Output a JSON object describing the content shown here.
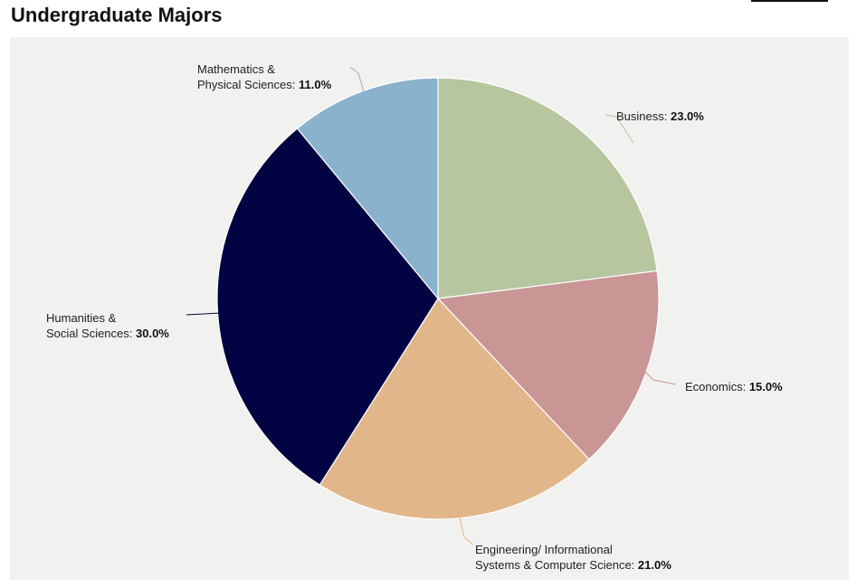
{
  "page": {
    "title": "Undergraduate Majors"
  },
  "chart_data": {
    "type": "pie",
    "start_angle_deg": 0,
    "direction": "clockwise",
    "slices": [
      {
        "label_lines": [
          "Business:"
        ],
        "value": 23.0,
        "value_text": "23.0%",
        "color": "#b8c6a0"
      },
      {
        "label_lines": [
          "Economics:"
        ],
        "value": 15.0,
        "value_text": "15.0%",
        "color": "#c99595"
      },
      {
        "label_lines": [
          "Engineering/ Informational",
          "Systems & Computer Science:"
        ],
        "value": 21.0,
        "value_text": "21.0%",
        "color": "#e2b68b"
      },
      {
        "label_lines": [
          "Humanities &",
          "Social Sciences:"
        ],
        "value": 30.0,
        "value_text": "30.0%",
        "color": "#020342"
      },
      {
        "label_lines": [
          "Mathematics &",
          "Physical Sciences:"
        ],
        "value": 11.0,
        "value_text": "11.0%",
        "color": "#8ab2cd"
      }
    ]
  }
}
